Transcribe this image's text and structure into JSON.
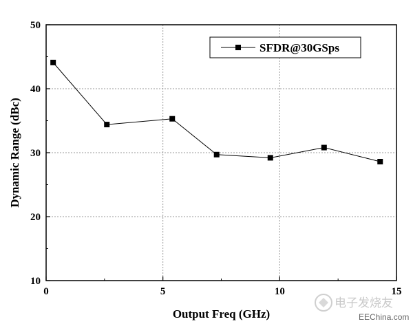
{
  "chart_data": {
    "type": "line",
    "xlabel": "Output Freq (GHz)",
    "ylabel": "Dynamic Range (dBc)",
    "xlim": [
      0,
      15
    ],
    "ylim": [
      10,
      50
    ],
    "xticks": [
      0,
      5,
      10,
      15
    ],
    "yticks": [
      10,
      20,
      30,
      40,
      50
    ],
    "grid": true,
    "legend_position": "top-right",
    "series": [
      {
        "name": "SFDR@30GSps",
        "marker": "square",
        "color": "#000000",
        "x": [
          0.3,
          2.6,
          5.4,
          7.3,
          9.6,
          11.9,
          14.3
        ],
        "y": [
          44.1,
          34.4,
          35.3,
          29.7,
          29.2,
          30.8,
          28.6
        ]
      }
    ]
  },
  "watermark": {
    "logo_text": "电子发烧友",
    "site_text": "EEChina.com"
  }
}
